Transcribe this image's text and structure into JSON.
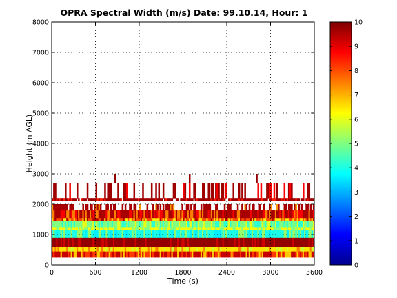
{
  "chart_data": {
    "type": "heatmap",
    "title": "OPRA Spectral Width (m/s)  Date: 99.10.14, Hour: 1",
    "xlabel": "Time (s)",
    "ylabel": "Height (m AGL)",
    "xlim": [
      0,
      3600
    ],
    "ylim": [
      0,
      8000
    ],
    "xticks": [
      0,
      600,
      1200,
      1800,
      2400,
      3000,
      3600
    ],
    "yticks": [
      0,
      1000,
      2000,
      3000,
      4000,
      5000,
      6000,
      7000,
      8000
    ],
    "grid": true,
    "colorbar": {
      "range": [
        0,
        10
      ],
      "ticks": [
        0,
        1,
        2,
        3,
        4,
        5,
        6,
        7,
        8,
        9,
        10
      ],
      "colormap": "jet"
    },
    "bands": [
      {
        "y0": 250,
        "y1": 450,
        "value": 9.3,
        "mix": [
          [
            6.8,
            0.25
          ],
          [
            8.2,
            0.25
          ]
        ]
      },
      {
        "y0": 450,
        "y1": 600,
        "value": 6.5,
        "mix": [
          [
            5.8,
            0.2
          ],
          [
            7.5,
            0.2
          ]
        ]
      },
      {
        "y0": 600,
        "y1": 900,
        "value": 9.8,
        "mix": [
          [
            9.2,
            0.15
          ]
        ]
      },
      {
        "y0": 900,
        "y1": 1150,
        "value": 4.0,
        "mix": [
          [
            5.2,
            0.3
          ],
          [
            3.6,
            0.2
          ]
        ]
      },
      {
        "y0": 1150,
        "y1": 1250,
        "value": 6.3,
        "mix": [
          [
            5.0,
            0.3
          ]
        ]
      },
      {
        "y0": 1250,
        "y1": 1450,
        "value": 5.0,
        "mix": [
          [
            4.2,
            0.3
          ],
          [
            6.0,
            0.2
          ]
        ]
      },
      {
        "y0": 1450,
        "y1": 1550,
        "value": 8.0,
        "mix": [
          [
            6.5,
            0.3
          ],
          [
            9.5,
            0.2
          ]
        ]
      },
      {
        "y0": 1550,
        "y1": 1800,
        "value": 9.6,
        "mix": [
          [
            7.5,
            0.25
          ],
          [
            8.8,
            0.2
          ]
        ]
      },
      {
        "y0": 1800,
        "y1": 2000,
        "value": 9.6,
        "mix": [
          [
            7.2,
            0.15
          ]
        ],
        "gap": 0.45
      },
      {
        "y0": 2100,
        "y1": 2200,
        "value": 9.7,
        "mix": [
          [
            8.5,
            0.15
          ]
        ],
        "gap": 0.1
      },
      {
        "y0": 2200,
        "y1": 2700,
        "value": 9.7,
        "mix": [
          [
            8.8,
            0.15
          ]
        ],
        "gap": 0.7
      },
      {
        "y0": 2700,
        "y1": 3000,
        "value": 9.8,
        "mix": [],
        "gap": 0.985
      }
    ]
  }
}
